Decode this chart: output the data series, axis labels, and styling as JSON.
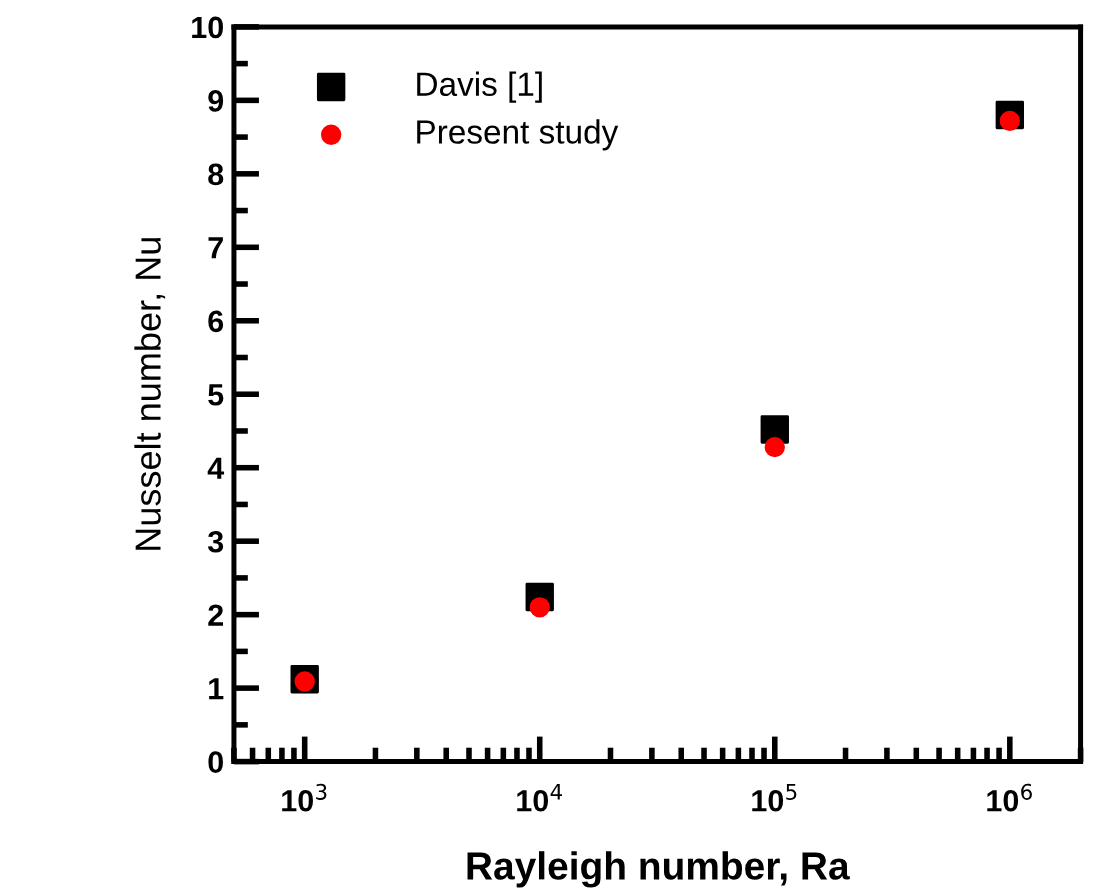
{
  "chart_data": {
    "type": "scatter",
    "xlabel": "Rayleigh number, Ra",
    "ylabel": "Nusselt number, Nu",
    "x": [
      1000,
      10000,
      100000,
      1000000
    ],
    "series": [
      {
        "name": "Davis [1]",
        "color": "#000000",
        "marker": "square",
        "values": [
          1.12,
          2.24,
          4.52,
          8.8
        ]
      },
      {
        "name": "Present study",
        "color": "#ff0000",
        "marker": "circle",
        "values": [
          1.09,
          2.1,
          4.28,
          8.72
        ]
      }
    ],
    "log": "x",
    "xlim": [
      500,
      2000000
    ],
    "xticks": [
      {
        "value": 1000,
        "label": "10$^{3}$"
      },
      {
        "value": 10000,
        "label": "10$^{4}$"
      },
      {
        "value": 100000,
        "label": "10$^{5}$"
      },
      {
        "value": 1000000,
        "label": "10$^{6}$"
      }
    ],
    "ylim": [
      0,
      10
    ],
    "yticks": [
      0,
      1,
      2,
      3,
      4,
      5,
      6,
      7,
      8,
      9,
      10
    ],
    "grid": false,
    "legend": "top left"
  }
}
